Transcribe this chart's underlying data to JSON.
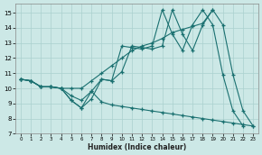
{
  "background_color": "#cce8e6",
  "grid_color": "#aad0ce",
  "line_color": "#1a7070",
  "xlim": [
    -0.5,
    23.5
  ],
  "ylim": [
    7,
    15.6
  ],
  "yticks": [
    7,
    8,
    9,
    10,
    11,
    12,
    13,
    14,
    15
  ],
  "xticks": [
    0,
    1,
    2,
    3,
    4,
    5,
    6,
    7,
    8,
    9,
    10,
    11,
    12,
    13,
    14,
    15,
    16,
    17,
    18,
    19,
    20,
    21,
    22,
    23
  ],
  "xlabel": "Humidex (Indice chaleur)",
  "series": [
    {
      "x": [
        0,
        1,
        2,
        3,
        4,
        5,
        6,
        7,
        8,
        9,
        10,
        11,
        12,
        13,
        14,
        15,
        16,
        17,
        18,
        19,
        20,
        21,
        22
      ],
      "y": [
        10.6,
        10.5,
        10.1,
        10.1,
        10.0,
        9.2,
        8.7,
        9.3,
        10.6,
        10.5,
        12.8,
        12.7,
        12.6,
        12.8,
        15.2,
        13.6,
        12.5,
        14.2,
        15.2,
        14.2,
        10.9,
        8.5,
        7.5
      ]
    },
    {
      "x": [
        0,
        1,
        2,
        3,
        4,
        5,
        6,
        7,
        8,
        9,
        10,
        11,
        12,
        13,
        14,
        15,
        16,
        17,
        18,
        19
      ],
      "y": [
        10.6,
        10.5,
        10.1,
        10.1,
        10.0,
        10.0,
        10.0,
        10.5,
        11.0,
        11.5,
        12.0,
        12.5,
        12.8,
        13.0,
        13.3,
        13.7,
        13.9,
        14.1,
        14.3,
        15.2
      ]
    },
    {
      "x": [
        0,
        1,
        2,
        3,
        4,
        5,
        6,
        7,
        8,
        9,
        10,
        11,
        12,
        13,
        14,
        15,
        16,
        17,
        18,
        19,
        20,
        21,
        22,
        23
      ],
      "y": [
        10.6,
        10.5,
        10.1,
        10.1,
        10.0,
        9.5,
        9.2,
        9.8,
        9.1,
        8.9,
        8.8,
        8.7,
        8.6,
        8.5,
        8.4,
        8.3,
        8.2,
        8.1,
        8.0,
        7.9,
        7.8,
        7.7,
        7.6,
        7.5
      ]
    },
    {
      "x": [
        0,
        1,
        2,
        3,
        4,
        5,
        6,
        7,
        8,
        9,
        10,
        11,
        12,
        13,
        14,
        15,
        16,
        17,
        18,
        19,
        20,
        21,
        22,
        23
      ],
      "y": [
        10.6,
        10.5,
        10.1,
        10.1,
        10.0,
        9.2,
        8.7,
        9.8,
        10.6,
        10.5,
        11.1,
        12.8,
        12.7,
        12.6,
        12.8,
        15.2,
        13.6,
        12.5,
        14.2,
        15.2,
        14.2,
        10.9,
        8.5,
        7.5
      ]
    }
  ]
}
